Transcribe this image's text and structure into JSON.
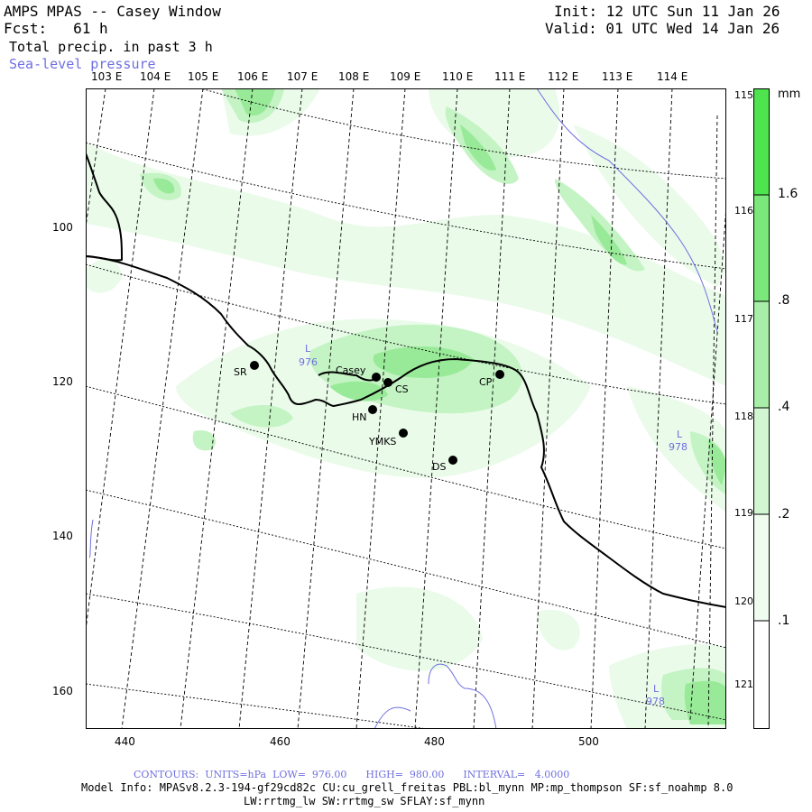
{
  "header": {
    "title": "AMPS MPAS -- Casey Window",
    "forecast": "Fcst:   61 h",
    "field": "Total precip. in past 3 h",
    "contour_field": "Sea-level pressure",
    "init": "Init: 12 UTC Sun 11 Jan 26",
    "valid": "Valid: 01 UTC Wed 14 Jan 26"
  },
  "map": {
    "lon_labels_top": [
      "103 E",
      "104 E",
      "105 E",
      "106 E",
      "107 E",
      "108 E",
      "109 E",
      "110 E",
      "111 E",
      "112 E",
      "113 E",
      "114 E"
    ],
    "lon_labels_right": [
      "115 E",
      "116 E",
      "117 E",
      "118 E",
      "119 E",
      "120 E",
      "121 E"
    ],
    "x_ticks": [
      "440",
      "460",
      "480",
      "500"
    ],
    "y_ticks": [
      "100",
      "120",
      "140",
      "160"
    ],
    "stations": [
      {
        "label": "SR"
      },
      {
        "label": "Casey"
      },
      {
        "label": "CS"
      },
      {
        "label": "CP"
      },
      {
        "label": "HN"
      },
      {
        "label": "YMKS"
      },
      {
        "label": "DS"
      }
    ],
    "pressure_labels": [
      {
        "letter": "L",
        "value": "976"
      },
      {
        "letter": "L",
        "value": "978"
      },
      {
        "letter": "L",
        "value": "978"
      }
    ],
    "colors": {
      "coast": "#000000",
      "grid": "#000000",
      "contour": "#6f6fe0",
      "precip_light": "#e6fbe6",
      "precip_mid": "#bff2bf",
      "precip_heavy": "#8fe88f",
      "precip_max": "#4ee44e"
    }
  },
  "colorbar": {
    "unit": "mm",
    "labels": [
      "1.6",
      ".8",
      ".4",
      ".2",
      ".1"
    ]
  },
  "footer": {
    "contours": "CONTOURS:  UNITS=hPa  LOW=  976.00      HIGH=  980.00      INTERVAL=   4.0000",
    "model_info": "Model Info: MPASv8.2.3-194-gf29cd82c CU:cu_grell_freitas PBL:bl_mynn MP:mp_thompson SF:sf_noahmp 8.0",
    "model_info2": "LW:rrtmg_lw SW:rrtmg_sw SFLAY:sf_mynn"
  }
}
